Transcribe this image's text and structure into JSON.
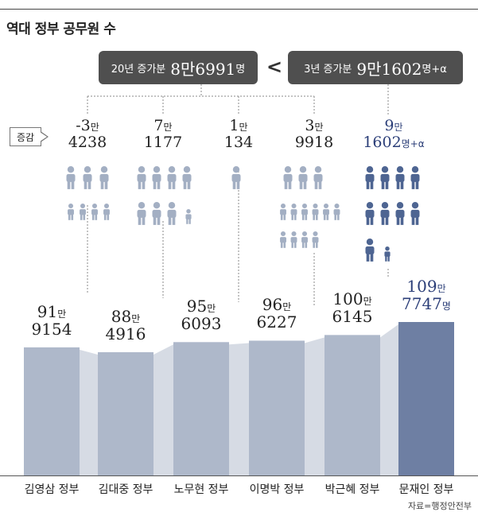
{
  "title": "역대 정부 공무원 수",
  "summary": {
    "left": {
      "label": "20년 증가분",
      "value": "8만6991",
      "unit": "명"
    },
    "comparator": "<",
    "right": {
      "label": "3년 증가분",
      "value": "9만1602",
      "unit": "명+α"
    }
  },
  "legend_label": "증감",
  "source": "자료=행정안전부",
  "colors": {
    "bar": "#aeb8ca",
    "bar_highlight": "#6e7fa3",
    "connector": "#d6dbe4",
    "person": "#a3afc3",
    "person_highlight": "#4e6592",
    "highlight_text": "#2b3e78",
    "pill": "#4f4f4f"
  },
  "increments": [
    {
      "line1": "-3",
      "unit1": "만",
      "line2": "4238",
      "unit2": ""
    },
    {
      "line1": "7",
      "unit1": "만",
      "line2": "1177",
      "unit2": ""
    },
    {
      "line1": "1",
      "unit1": "만",
      "line2": "134",
      "unit2": ""
    },
    {
      "line1": "3",
      "unit1": "만",
      "line2": "9918",
      "unit2": ""
    },
    {
      "line1": "9",
      "unit1": "만",
      "line2": "1602",
      "unit2": "명+α"
    }
  ],
  "bar_labels": [
    {
      "man": "91",
      "rest": "9154",
      "unit": ""
    },
    {
      "man": "88",
      "rest": "4916",
      "unit": ""
    },
    {
      "man": "95",
      "rest": "6093",
      "unit": ""
    },
    {
      "man": "96",
      "rest": "6227",
      "unit": ""
    },
    {
      "man": "100",
      "rest": "6145",
      "unit": ""
    },
    {
      "man": "109",
      "rest": "7747",
      "unit": "명"
    }
  ],
  "chart_data": {
    "type": "bar",
    "title": "역대 정부 공무원 수",
    "categories": [
      "김영삼 정부",
      "김대중 정부",
      "노무현 정부",
      "이명박 정부",
      "박근혜 정부",
      "문재인 정부"
    ],
    "values": [
      919154,
      884916,
      956093,
      966227,
      1006145,
      1097747
    ],
    "increments": [
      -34238,
      71177,
      10134,
      39918,
      91602
    ],
    "ylim": [
      0,
      1100000
    ]
  }
}
